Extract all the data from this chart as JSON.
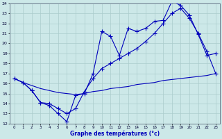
{
  "xlabel": "Graphe des températures (°c)",
  "x_ticks": [
    0,
    1,
    2,
    3,
    4,
    5,
    6,
    7,
    8,
    9,
    10,
    11,
    12,
    13,
    14,
    15,
    16,
    17,
    18,
    19,
    20,
    21,
    22,
    23
  ],
  "ylim": [
    12,
    24
  ],
  "y_ticks": [
    12,
    13,
    14,
    15,
    16,
    17,
    18,
    19,
    20,
    21,
    22,
    23,
    24
  ],
  "bg_color": "#cce8e8",
  "line_color": "#0000bb",
  "grid_color": "#aacccc",
  "series1_x": [
    0,
    1,
    2,
    3,
    4,
    5,
    6,
    7,
    8,
    9,
    10,
    11,
    12,
    13,
    14,
    15,
    16,
    17,
    18,
    19,
    20,
    21,
    22,
    23
  ],
  "series1_y": [
    16.5,
    16.1,
    15.3,
    14.1,
    13.8,
    13.0,
    12.2,
    14.8,
    15.0,
    17.0,
    21.2,
    20.7,
    18.8,
    21.5,
    21.2,
    21.5,
    22.2,
    22.3,
    24.2,
    23.8,
    22.8,
    20.9,
    18.8,
    19.0
  ],
  "series2_x": [
    0,
    1,
    2,
    3,
    4,
    5,
    6,
    7,
    8,
    9,
    10,
    11,
    12,
    13,
    14,
    15,
    16,
    17,
    18,
    19,
    20,
    21,
    22,
    23
  ],
  "series2_y": [
    16.5,
    16.1,
    15.3,
    14.1,
    14.0,
    13.5,
    13.0,
    13.5,
    15.2,
    16.5,
    17.5,
    18.0,
    18.5,
    19.0,
    19.5,
    20.2,
    21.0,
    22.0,
    23.0,
    23.5,
    22.5,
    21.0,
    19.2,
    17.0
  ],
  "series3_x": [
    0,
    1,
    2,
    3,
    4,
    5,
    6,
    7,
    8,
    9,
    10,
    11,
    12,
    13,
    14,
    15,
    16,
    17,
    18,
    19,
    20,
    21,
    22,
    23
  ],
  "series3_y": [
    16.5,
    16.1,
    15.8,
    15.5,
    15.3,
    15.1,
    15.0,
    14.9,
    15.0,
    15.2,
    15.3,
    15.5,
    15.6,
    15.7,
    15.9,
    16.0,
    16.1,
    16.3,
    16.4,
    16.5,
    16.6,
    16.7,
    16.8,
    17.0
  ]
}
